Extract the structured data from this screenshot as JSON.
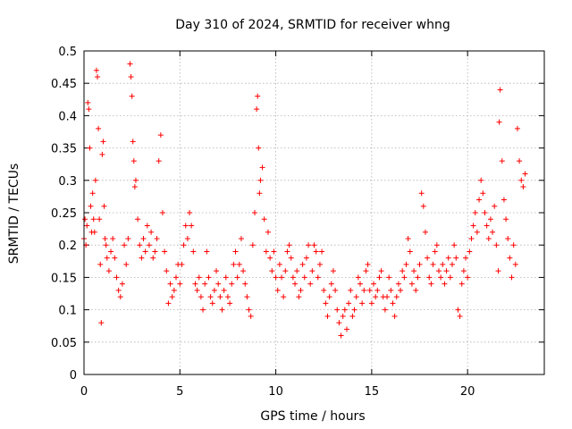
{
  "chart_data": {
    "type": "scatter",
    "title": "Day 310 of 2024, SRMTID for receiver whng",
    "xlabel": "GPS time / hours",
    "ylabel": "SRMTID / TECUs",
    "xlim": [
      0,
      24
    ],
    "ylim": [
      0,
      0.5
    ],
    "x_ticks": [
      0,
      5,
      10,
      15,
      20
    ],
    "x_tick_labels": [
      "0",
      "5",
      "10",
      "15",
      "20"
    ],
    "y_ticks": [
      0,
      0.05,
      0.1,
      0.15,
      0.2,
      0.25,
      0.3,
      0.35,
      0.4,
      0.45,
      0.5
    ],
    "y_tick_labels": [
      "0",
      "0.05",
      "0.1",
      "0.15",
      "0.2",
      "0.25",
      "0.3",
      "0.35",
      "0.4",
      "0.45",
      "0.5"
    ],
    "grid": true,
    "marker": "+",
    "color": "#ff0000",
    "series": [
      {
        "name": "SRMTID",
        "points": [
          [
            0.0,
            0.21
          ],
          [
            0.05,
            0.24
          ],
          [
            0.1,
            0.2
          ],
          [
            0.15,
            0.23
          ],
          [
            0.2,
            0.42
          ],
          [
            0.25,
            0.41
          ],
          [
            0.3,
            0.35
          ],
          [
            0.35,
            0.26
          ],
          [
            0.4,
            0.22
          ],
          [
            0.45,
            0.28
          ],
          [
            0.5,
            0.24
          ],
          [
            0.55,
            0.22
          ],
          [
            0.6,
            0.3
          ],
          [
            0.65,
            0.47
          ],
          [
            0.7,
            0.46
          ],
          [
            0.75,
            0.38
          ],
          [
            0.8,
            0.24
          ],
          [
            0.85,
            0.17
          ],
          [
            0.9,
            0.08
          ],
          [
            0.95,
            0.34
          ],
          [
            1.0,
            0.36
          ],
          [
            1.05,
            0.26
          ],
          [
            1.1,
            0.21
          ],
          [
            1.15,
            0.2
          ],
          [
            1.2,
            0.18
          ],
          [
            1.3,
            0.16
          ],
          [
            1.4,
            0.19
          ],
          [
            1.5,
            0.21
          ],
          [
            1.6,
            0.18
          ],
          [
            1.7,
            0.15
          ],
          [
            1.8,
            0.13
          ],
          [
            1.9,
            0.12
          ],
          [
            2.0,
            0.14
          ],
          [
            2.1,
            0.2
          ],
          [
            2.2,
            0.17
          ],
          [
            2.3,
            0.21
          ],
          [
            2.4,
            0.48
          ],
          [
            2.45,
            0.46
          ],
          [
            2.5,
            0.43
          ],
          [
            2.55,
            0.36
          ],
          [
            2.6,
            0.33
          ],
          [
            2.65,
            0.29
          ],
          [
            2.7,
            0.3
          ],
          [
            2.8,
            0.24
          ],
          [
            2.9,
            0.2
          ],
          [
            3.0,
            0.18
          ],
          [
            3.1,
            0.21
          ],
          [
            3.2,
            0.19
          ],
          [
            3.3,
            0.23
          ],
          [
            3.4,
            0.2
          ],
          [
            3.5,
            0.22
          ],
          [
            3.6,
            0.18
          ],
          [
            3.7,
            0.19
          ],
          [
            3.8,
            0.21
          ],
          [
            3.9,
            0.33
          ],
          [
            4.0,
            0.37
          ],
          [
            4.1,
            0.25
          ],
          [
            4.2,
            0.19
          ],
          [
            4.3,
            0.16
          ],
          [
            4.4,
            0.11
          ],
          [
            4.5,
            0.14
          ],
          [
            4.6,
            0.12
          ],
          [
            4.7,
            0.13
          ],
          [
            4.8,
            0.15
          ],
          [
            4.9,
            0.17
          ],
          [
            5.0,
            0.14
          ],
          [
            5.1,
            0.17
          ],
          [
            5.2,
            0.2
          ],
          [
            5.3,
            0.23
          ],
          [
            5.4,
            0.21
          ],
          [
            5.5,
            0.25
          ],
          [
            5.6,
            0.23
          ],
          [
            5.7,
            0.19
          ],
          [
            5.8,
            0.14
          ],
          [
            5.9,
            0.13
          ],
          [
            6.0,
            0.15
          ],
          [
            6.1,
            0.12
          ],
          [
            6.2,
            0.1
          ],
          [
            6.3,
            0.14
          ],
          [
            6.4,
            0.19
          ],
          [
            6.5,
            0.15
          ],
          [
            6.6,
            0.12
          ],
          [
            6.7,
            0.11
          ],
          [
            6.8,
            0.13
          ],
          [
            6.9,
            0.16
          ],
          [
            7.0,
            0.14
          ],
          [
            7.1,
            0.12
          ],
          [
            7.2,
            0.1
          ],
          [
            7.3,
            0.13
          ],
          [
            7.4,
            0.15
          ],
          [
            7.5,
            0.12
          ],
          [
            7.6,
            0.11
          ],
          [
            7.7,
            0.14
          ],
          [
            7.8,
            0.17
          ],
          [
            7.9,
            0.19
          ],
          [
            8.0,
            0.15
          ],
          [
            8.1,
            0.17
          ],
          [
            8.2,
            0.21
          ],
          [
            8.3,
            0.16
          ],
          [
            8.4,
            0.14
          ],
          [
            8.5,
            0.12
          ],
          [
            8.6,
            0.1
          ],
          [
            8.7,
            0.09
          ],
          [
            8.8,
            0.2
          ],
          [
            8.9,
            0.25
          ],
          [
            9.0,
            0.41
          ],
          [
            9.05,
            0.43
          ],
          [
            9.1,
            0.35
          ],
          [
            9.15,
            0.28
          ],
          [
            9.2,
            0.3
          ],
          [
            9.3,
            0.32
          ],
          [
            9.4,
            0.24
          ],
          [
            9.5,
            0.19
          ],
          [
            9.6,
            0.22
          ],
          [
            9.7,
            0.18
          ],
          [
            9.8,
            0.16
          ],
          [
            9.9,
            0.19
          ],
          [
            10.0,
            0.15
          ],
          [
            10.1,
            0.13
          ],
          [
            10.2,
            0.17
          ],
          [
            10.3,
            0.15
          ],
          [
            10.4,
            0.12
          ],
          [
            10.5,
            0.16
          ],
          [
            10.6,
            0.19
          ],
          [
            10.7,
            0.2
          ],
          [
            10.8,
            0.18
          ],
          [
            10.9,
            0.15
          ],
          [
            11.0,
            0.14
          ],
          [
            11.1,
            0.16
          ],
          [
            11.2,
            0.12
          ],
          [
            11.3,
            0.13
          ],
          [
            11.4,
            0.17
          ],
          [
            11.5,
            0.15
          ],
          [
            11.6,
            0.18
          ],
          [
            11.7,
            0.2
          ],
          [
            11.8,
            0.14
          ],
          [
            11.9,
            0.16
          ],
          [
            12.0,
            0.2
          ],
          [
            12.1,
            0.19
          ],
          [
            12.2,
            0.15
          ],
          [
            12.3,
            0.17
          ],
          [
            12.4,
            0.19
          ],
          [
            12.5,
            0.13
          ],
          [
            12.6,
            0.11
          ],
          [
            12.7,
            0.09
          ],
          [
            12.8,
            0.12
          ],
          [
            12.9,
            0.14
          ],
          [
            13.0,
            0.16
          ],
          [
            13.1,
            0.13
          ],
          [
            13.2,
            0.1
          ],
          [
            13.3,
            0.08
          ],
          [
            13.4,
            0.06
          ],
          [
            13.5,
            0.09
          ],
          [
            13.6,
            0.1
          ],
          [
            13.7,
            0.07
          ],
          [
            13.8,
            0.11
          ],
          [
            13.9,
            0.13
          ],
          [
            14.0,
            0.09
          ],
          [
            14.1,
            0.1
          ],
          [
            14.2,
            0.12
          ],
          [
            14.3,
            0.15
          ],
          [
            14.4,
            0.14
          ],
          [
            14.5,
            0.11
          ],
          [
            14.6,
            0.13
          ],
          [
            14.7,
            0.16
          ],
          [
            14.8,
            0.17
          ],
          [
            14.9,
            0.13
          ],
          [
            15.0,
            0.11
          ],
          [
            15.1,
            0.14
          ],
          [
            15.2,
            0.12
          ],
          [
            15.3,
            0.13
          ],
          [
            15.4,
            0.15
          ],
          [
            15.5,
            0.16
          ],
          [
            15.6,
            0.12
          ],
          [
            15.7,
            0.1
          ],
          [
            15.8,
            0.12
          ],
          [
            15.9,
            0.15
          ],
          [
            16.0,
            0.13
          ],
          [
            16.1,
            0.11
          ],
          [
            16.2,
            0.09
          ],
          [
            16.3,
            0.12
          ],
          [
            16.4,
            0.14
          ],
          [
            16.5,
            0.13
          ],
          [
            16.6,
            0.16
          ],
          [
            16.7,
            0.15
          ],
          [
            16.8,
            0.17
          ],
          [
            16.9,
            0.21
          ],
          [
            17.0,
            0.19
          ],
          [
            17.1,
            0.14
          ],
          [
            17.2,
            0.16
          ],
          [
            17.3,
            0.13
          ],
          [
            17.4,
            0.15
          ],
          [
            17.5,
            0.17
          ],
          [
            17.6,
            0.28
          ],
          [
            17.7,
            0.26
          ],
          [
            17.8,
            0.22
          ],
          [
            17.9,
            0.18
          ],
          [
            18.0,
            0.15
          ],
          [
            18.1,
            0.14
          ],
          [
            18.2,
            0.17
          ],
          [
            18.3,
            0.19
          ],
          [
            18.4,
            0.2
          ],
          [
            18.5,
            0.16
          ],
          [
            18.6,
            0.15
          ],
          [
            18.7,
            0.17
          ],
          [
            18.8,
            0.14
          ],
          [
            18.9,
            0.16
          ],
          [
            19.0,
            0.18
          ],
          [
            19.1,
            0.15
          ],
          [
            19.2,
            0.17
          ],
          [
            19.3,
            0.2
          ],
          [
            19.4,
            0.18
          ],
          [
            19.5,
            0.1
          ],
          [
            19.6,
            0.09
          ],
          [
            19.7,
            0.14
          ],
          [
            19.8,
            0.16
          ],
          [
            19.9,
            0.18
          ],
          [
            20.0,
            0.15
          ],
          [
            20.1,
            0.19
          ],
          [
            20.2,
            0.21
          ],
          [
            20.3,
            0.23
          ],
          [
            20.4,
            0.25
          ],
          [
            20.5,
            0.22
          ],
          [
            20.6,
            0.27
          ],
          [
            20.7,
            0.3
          ],
          [
            20.8,
            0.28
          ],
          [
            20.9,
            0.25
          ],
          [
            21.0,
            0.23
          ],
          [
            21.1,
            0.21
          ],
          [
            21.2,
            0.24
          ],
          [
            21.3,
            0.22
          ],
          [
            21.4,
            0.26
          ],
          [
            21.5,
            0.2
          ],
          [
            21.6,
            0.16
          ],
          [
            21.65,
            0.39
          ],
          [
            21.7,
            0.44
          ],
          [
            21.8,
            0.33
          ],
          [
            21.9,
            0.27
          ],
          [
            22.0,
            0.24
          ],
          [
            22.1,
            0.21
          ],
          [
            22.2,
            0.18
          ],
          [
            22.3,
            0.15
          ],
          [
            22.4,
            0.2
          ],
          [
            22.5,
            0.17
          ],
          [
            22.6,
            0.38
          ],
          [
            22.7,
            0.33
          ],
          [
            22.8,
            0.3
          ],
          [
            22.9,
            0.29
          ],
          [
            23.0,
            0.31
          ]
        ]
      }
    ]
  }
}
